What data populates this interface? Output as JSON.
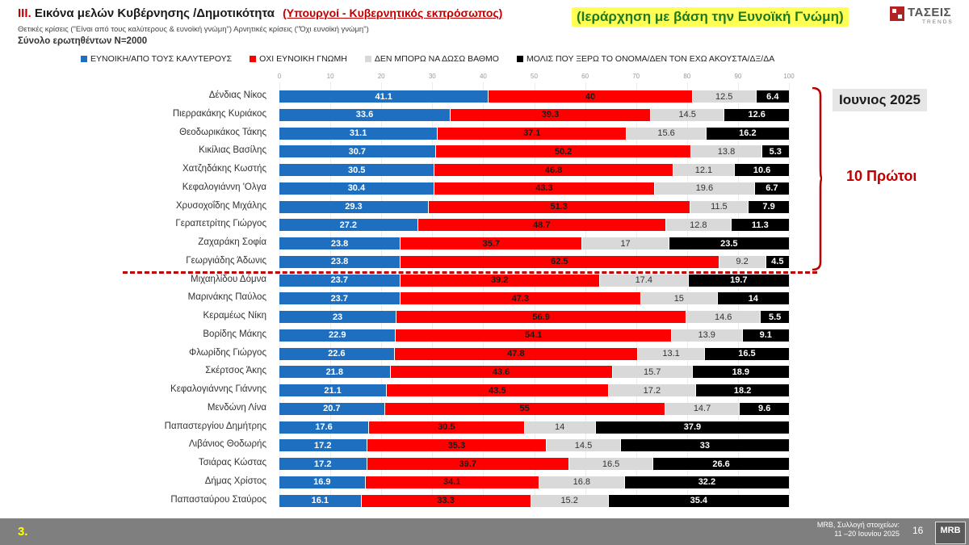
{
  "header": {
    "roman": "ΙΙΙ.",
    "title": "Εικόνα μελών Κυβέρνησης /Δημοτικότητα",
    "subtitle": "(Υπουργοί - Κυβερνητικός εκπρόσωπος)",
    "criteria_line": "Θετικές κρίσεις (\"Είναι από τους καλύτερους & ευνοϊκή γνώμη\")  Αρνητικές κρίσεις (\"Όχι ευνοϊκή γνώμη\")",
    "sample": "Σύνολο ερωτηθέντων Ν=2000",
    "ranking_note": "(Ιεράρχηση με βάση την Ευνοϊκή Γνώμη)"
  },
  "logo": {
    "name": "ΤΑΣΕΙΣ",
    "tagline": "TRENDS"
  },
  "annotations": {
    "month": "Ιουνιος 2025",
    "top10": "10 Πρώτοι"
  },
  "footer": {
    "section": "3.",
    "source_line1": "MRB, Συλλογή στοιχείων:",
    "source_line2": "11 –20 Ιουνίου 2025",
    "page": "16",
    "brand": "MRB"
  },
  "colors": {
    "favorable": "#1f6fc0",
    "unfavorable": "#ff0000",
    "cannot_rate": "#d9d9d9",
    "unknown": "#000000",
    "highlight": "#c00000"
  },
  "chart_data": {
    "type": "bar",
    "orientation": "horizontal-stacked",
    "xlim": [
      0,
      100
    ],
    "xticks": [
      "0",
      "10",
      "20",
      "30",
      "40",
      "50",
      "60",
      "70",
      "80",
      "90",
      "100"
    ],
    "legend_position": "top",
    "categories": [
      "Δένδιας Νίκος",
      "Πιερρακάκης Κυριάκος",
      "Θεοδωρικάκος Τάκης",
      "Κικίλιας Βασίλης",
      "Χατζηδάκης Κωστής",
      "Κεφαλογιάννη 'Ολγα",
      "Χρυσοχοΐδης Μιχάλης",
      "Γεραπετρίτης Γιώργος",
      "Ζαχαράκη Σοφία",
      "Γεωργιάδης Άδωνις",
      "Μιχαηλίδου Δόμνα",
      "Μαρινάκης Παύλος",
      "Κεραμέως Νίκη",
      "Βορίδης Μάκης",
      "Φλωρίδης Γιώργος",
      "Σκέρτσος Άκης",
      "Κεφαλογιάννης Γιάννης",
      "Μενδώνη Λίνα",
      "Παπαστεργίου Δημήτρης",
      "Λιβάνιος Θοδωρής",
      "Τσιάρας Κώστας",
      "Δήμας Χρίστος",
      "Παπασταύρου Σταύρος"
    ],
    "series": [
      {
        "name": "ΕΥΝΟΙΚΗ/ΑΠΟ ΤΟΥΣ ΚΑΛΥΤΕΡΟΥΣ",
        "color": "#1f6fc0",
        "values": [
          41.1,
          33.6,
          31.1,
          30.7,
          30.5,
          30.4,
          29.3,
          27.2,
          23.8,
          23.8,
          23.7,
          23.7,
          23,
          22.9,
          22.6,
          21.8,
          21.1,
          20.7,
          17.6,
          17.2,
          17.2,
          16.9,
          16.1
        ]
      },
      {
        "name": "ΟΧΙ ΕΥΝΟΙΚΗ ΓΝΩΜΗ",
        "color": "#ff0000",
        "values": [
          40,
          39.3,
          37.1,
          50.2,
          46.8,
          43.3,
          51.3,
          48.7,
          35.7,
          62.5,
          39.2,
          47.3,
          56.9,
          54.1,
          47.8,
          43.6,
          43.5,
          55,
          30.5,
          35.3,
          39.7,
          34.1,
          33.3
        ]
      },
      {
        "name": "ΔΕΝ ΜΠΟΡΩ ΝΑ ΔΩΣΩ ΒΑΘΜΟ",
        "color": "#d9d9d9",
        "values": [
          12.5,
          14.5,
          15.6,
          13.8,
          12.1,
          19.6,
          11.5,
          12.8,
          17,
          9.2,
          17.4,
          15,
          14.6,
          13.9,
          13.1,
          15.7,
          17.2,
          14.7,
          14,
          14.5,
          16.5,
          16.8,
          15.2
        ]
      },
      {
        "name": "ΜΟΛΙΣ ΠΟΥ ΞΕΡΩ ΤΟ ΟΝΟΜΑ/ΔΕΝ ΤΟΝ ΕΧΩ ΑΚΟΥΣΤΑ/ΔΞ/ΔΑ",
        "color": "#000000",
        "values": [
          6.4,
          12.6,
          16.2,
          5.3,
          10.6,
          6.7,
          7.9,
          11.3,
          23.5,
          4.5,
          19.7,
          14,
          5.5,
          9.1,
          16.5,
          18.9,
          18.2,
          9.6,
          37.9,
          33,
          26.6,
          32.2,
          35.4
        ]
      }
    ]
  }
}
